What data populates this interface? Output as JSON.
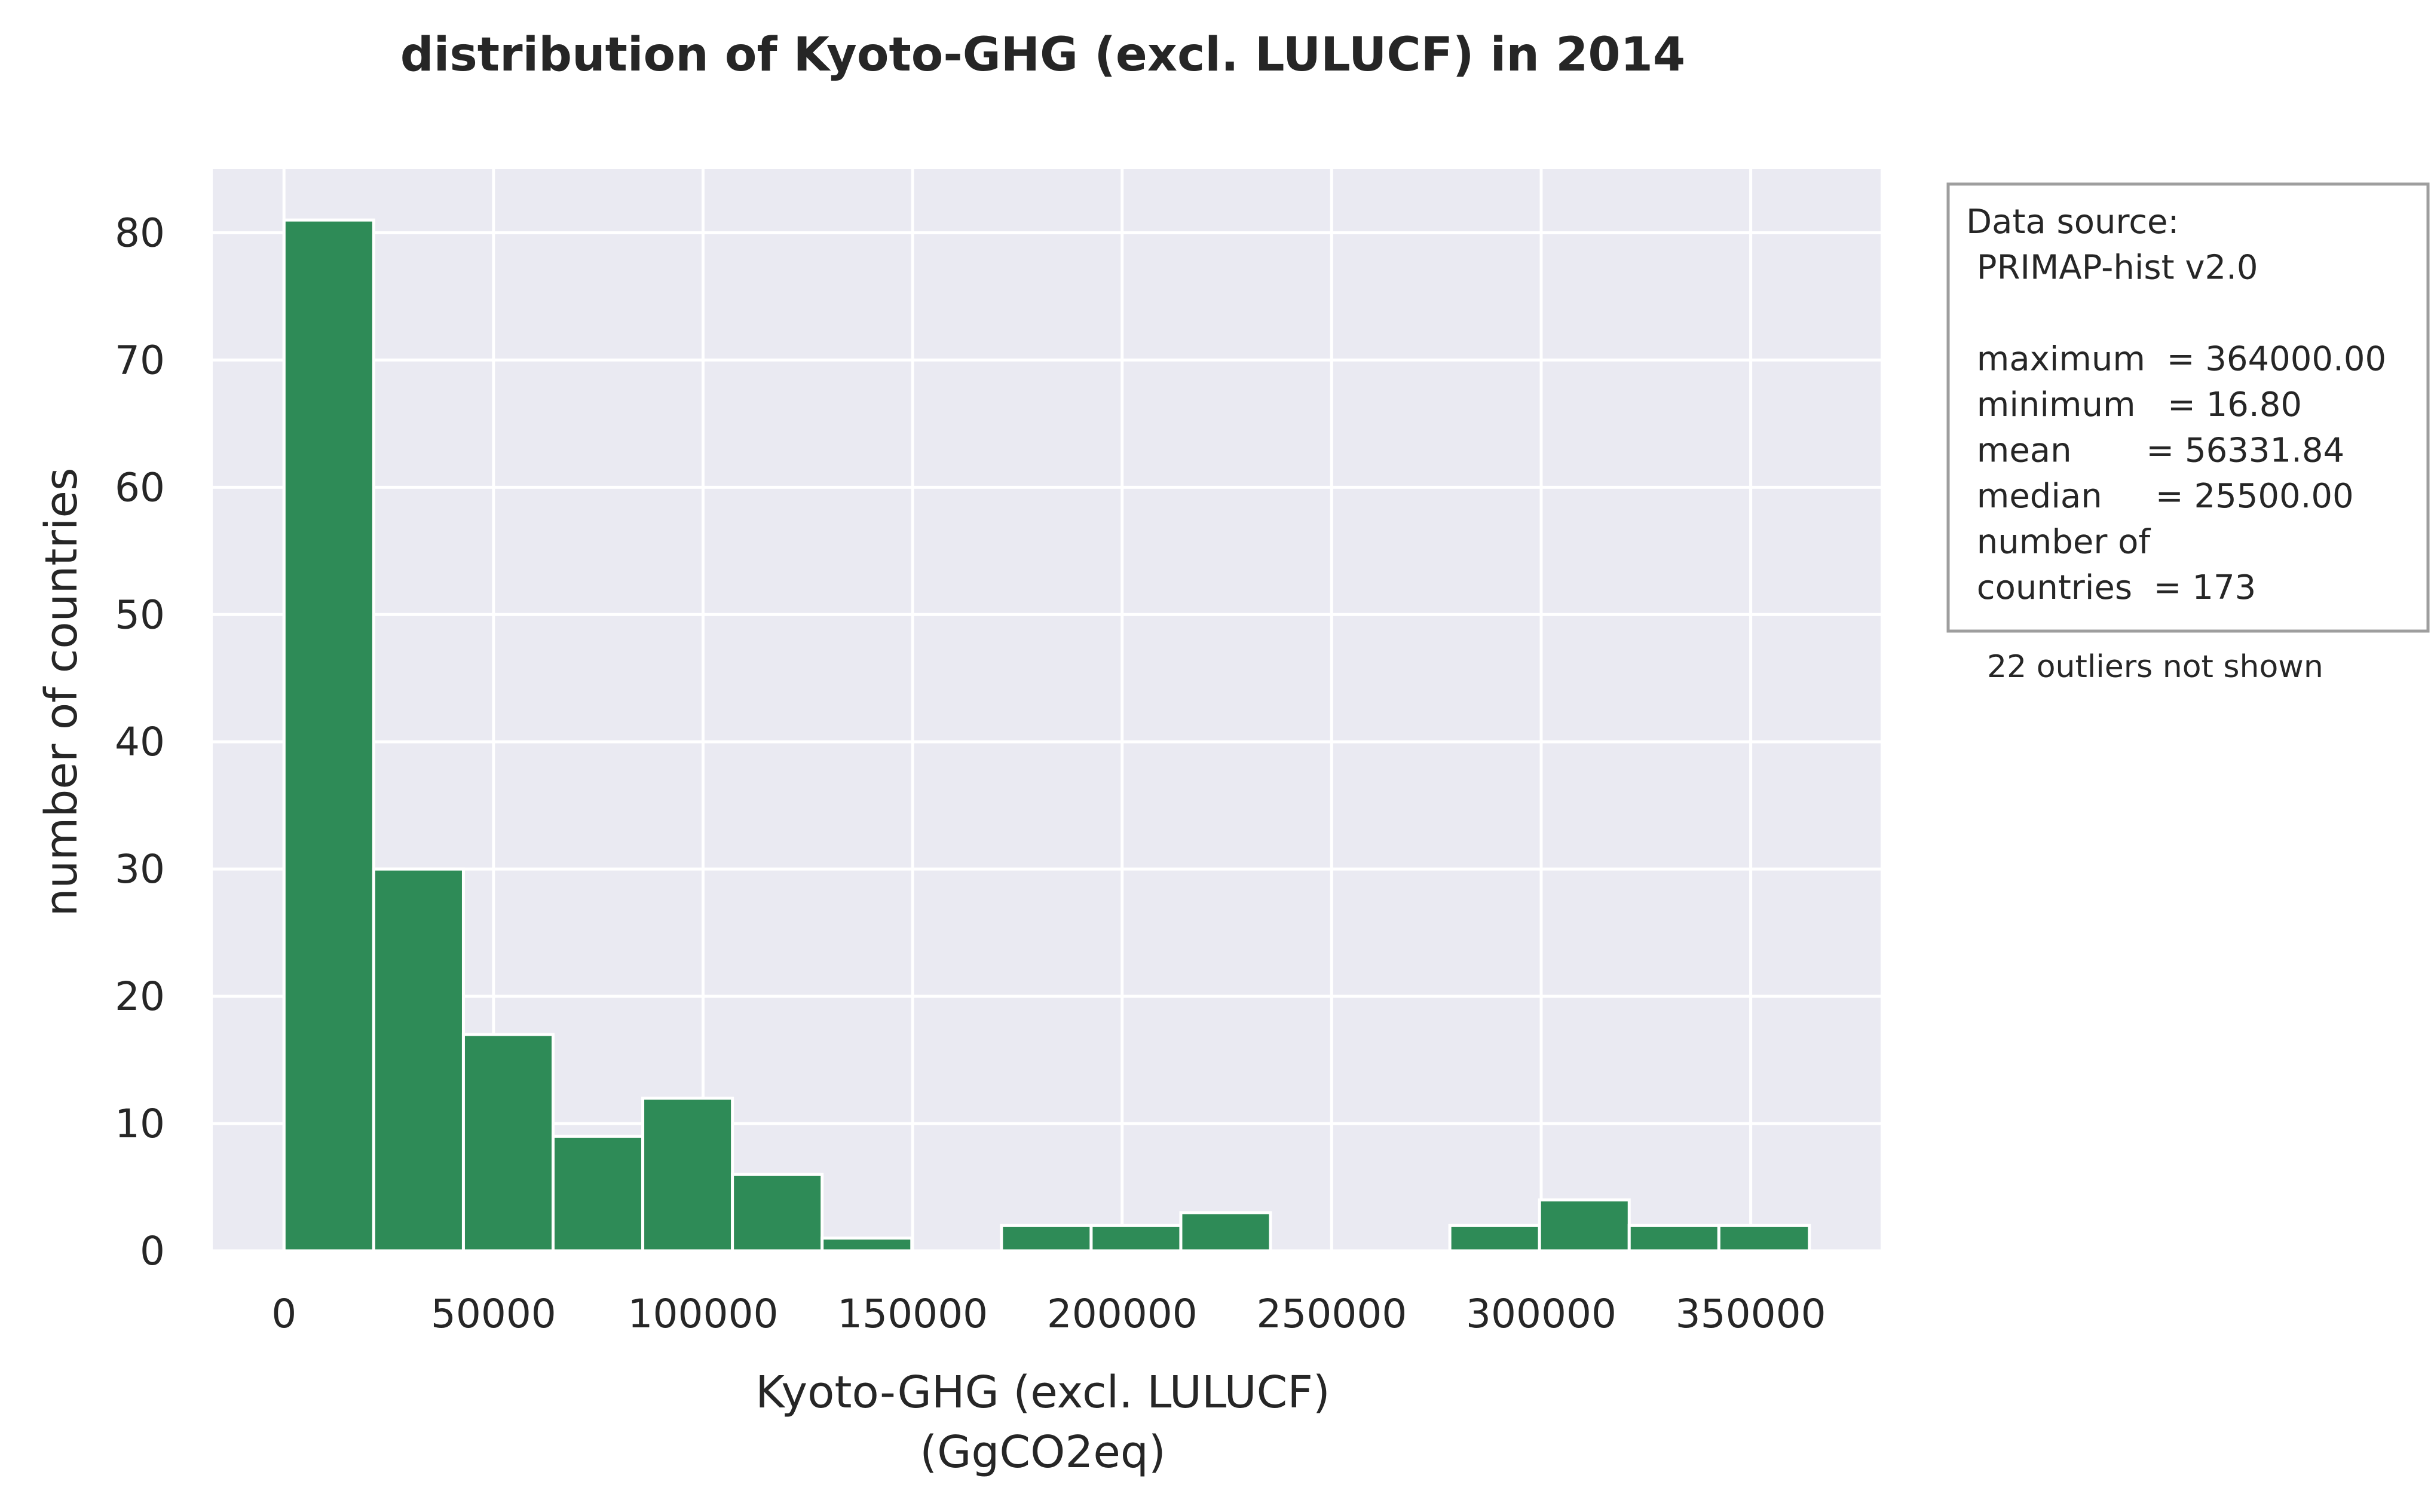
{
  "chart_data": {
    "type": "bar",
    "title": "distribution of Kyoto-GHG (excl. LULUCF) in 2014",
    "xlabel_lines": [
      "Kyoto-GHG (excl. LULUCF)",
      "(GgCO2eq)"
    ],
    "ylabel": "number of countries",
    "xlim": [
      -17000,
      381000
    ],
    "ylim": [
      0,
      85
    ],
    "xticks": [
      0,
      50000,
      100000,
      150000,
      200000,
      250000,
      300000,
      350000
    ],
    "xtick_labels": [
      "0",
      "50000",
      "100000",
      "150000",
      "200000",
      "250000",
      "300000",
      "350000"
    ],
    "yticks": [
      0,
      10,
      20,
      30,
      40,
      50,
      60,
      70,
      80
    ],
    "ytick_labels": [
      "0",
      "10",
      "20",
      "30",
      "40",
      "50",
      "60",
      "70",
      "80"
    ],
    "grid": true,
    "bar_color": "#2e8b57",
    "plot_background": "#eaeaf2",
    "grid_color": "#ffffff",
    "bins": [
      {
        "x0": 16.8,
        "x1": 21415.9,
        "count": 81
      },
      {
        "x0": 21415.9,
        "x1": 42815.0,
        "count": 30
      },
      {
        "x0": 42815.0,
        "x1": 64214.1,
        "count": 17
      },
      {
        "x0": 64214.1,
        "x1": 85613.2,
        "count": 9
      },
      {
        "x0": 85613.2,
        "x1": 107012.3,
        "count": 12
      },
      {
        "x0": 107012.3,
        "x1": 128411.4,
        "count": 6
      },
      {
        "x0": 128411.4,
        "x1": 149810.5,
        "count": 1
      },
      {
        "x0": 149810.5,
        "x1": 171209.6,
        "count": 0
      },
      {
        "x0": 171209.6,
        "x1": 192608.7,
        "count": 2
      },
      {
        "x0": 192608.7,
        "x1": 214007.8,
        "count": 2
      },
      {
        "x0": 214007.8,
        "x1": 235406.9,
        "count": 3
      },
      {
        "x0": 235406.9,
        "x1": 256806.0,
        "count": 0
      },
      {
        "x0": 256806.0,
        "x1": 278205.1,
        "count": 0
      },
      {
        "x0": 278205.1,
        "x1": 299604.2,
        "count": 2
      },
      {
        "x0": 299604.2,
        "x1": 321003.3,
        "count": 4
      },
      {
        "x0": 321003.3,
        "x1": 342402.4,
        "count": 2
      },
      {
        "x0": 342402.4,
        "x1": 364000.0,
        "count": 2
      }
    ],
    "info_box": {
      "lines": [
        "Data source:",
        " PRIMAP-hist v2.0",
        "",
        " maximum  = 364000.00",
        " minimum   = 16.80",
        " mean       = 56331.84",
        " median     = 25500.00",
        " number of",
        " countries  = 173"
      ],
      "border_color": "#9e9e9e"
    },
    "note": "22 outliers not shown"
  }
}
